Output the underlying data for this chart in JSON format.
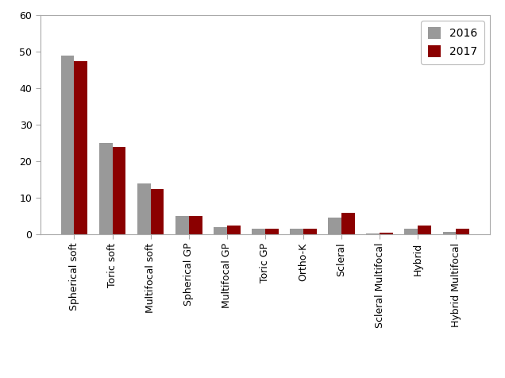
{
  "categories": [
    "Spherical soft",
    "Toric soft",
    "Multifocal soft",
    "Spherical GP",
    "Multifocal GP",
    "Toric GP",
    "Ortho-K",
    "Scleral",
    "Scleral Multifocal",
    "Hybrid",
    "Hybrid Multifocal"
  ],
  "values_2016": [
    49,
    25,
    14,
    5,
    2,
    1.5,
    1.5,
    4.5,
    0.3,
    1.5,
    0.7
  ],
  "values_2017": [
    47.5,
    24,
    12.5,
    5,
    2.5,
    1.5,
    1.5,
    6,
    0.5,
    2.5,
    1.5
  ],
  "color_2016": "#999999",
  "color_2017": "#8B0000",
  "ylim": [
    0,
    60
  ],
  "yticks": [
    0,
    10,
    20,
    30,
    40,
    50,
    60
  ],
  "legend_labels": [
    "2016",
    "2017"
  ],
  "bar_width": 0.35,
  "background_color": "#ffffff",
  "figure_background": "#ffffff",
  "border_color": "#aaaaaa"
}
